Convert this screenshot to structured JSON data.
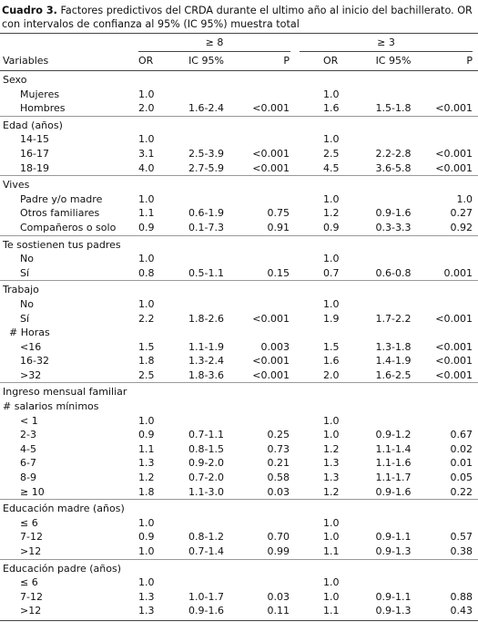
{
  "caption": {
    "label": "Cuadro 3.",
    "text": "Factores predictivos del CRDA durante el ultimo año al inicio del bachillerato. OR con intervalos de confianza al 95% (IC 95%) muestra total"
  },
  "table": {
    "group_headers": [
      "≥ 8",
      "≥ 3"
    ],
    "columns": [
      "Variables",
      "OR",
      "IC 95%",
      "P",
      "OR",
      "IC 95%",
      "P"
    ],
    "groups": [
      {
        "title": "Sexo",
        "rows": [
          {
            "label": "Mujeres",
            "or8": "1.0",
            "or3": "1.0"
          },
          {
            "label": "Hombres",
            "or8": "2.0",
            "ic8": "1.6-2.4",
            "p8": "<0.001",
            "or3": "1.6",
            "ic3": "1.5-1.8",
            "p3": "<0.001"
          }
        ]
      },
      {
        "title": "Edad (años)",
        "rows": [
          {
            "label": "14-15",
            "or8": "1.0",
            "or3": "1.0"
          },
          {
            "label": "16-17",
            "or8": "3.1",
            "ic8": "2.5-3.9",
            "p8": "<0.001",
            "or3": "2.5",
            "ic3": "2.2-2.8",
            "p3": "<0.001"
          },
          {
            "label": "18-19",
            "or8": "4.0",
            "ic8": "2.7-5.9",
            "p8": "<0.001",
            "or3": "4.5",
            "ic3": "3.6-5.8",
            "p3": "<0.001"
          }
        ]
      },
      {
        "title": "Vives",
        "rows": [
          {
            "label": "Padre y/o madre",
            "or8": "1.0",
            "or3": "1.0",
            "p3": "1.0"
          },
          {
            "label": "Otros familiares",
            "or8": "1.1",
            "ic8": "0.6-1.9",
            "p8": "0.75",
            "or3": "1.2",
            "ic3": "0.9-1.6",
            "p3": "0.27"
          },
          {
            "label": "Compañeros o solo",
            "or8": "0.9",
            "ic8": "0.1-7.3",
            "p8": "0.91",
            "or3": "0.9",
            "ic3": "0.3-3.3",
            "p3": "0.92"
          }
        ]
      },
      {
        "title": "Te sostienen tus padres",
        "rows": [
          {
            "label": "No",
            "or8": "1.0",
            "or3": "1.0"
          },
          {
            "label": "Sí",
            "or8": "0.8",
            "ic8": "0.5-1.1",
            "p8": "0.15",
            "or3": "0.7",
            "ic3": "0.6-0.8",
            "p3": "0.001"
          }
        ]
      },
      {
        "title": "Trabajo",
        "rows": [
          {
            "label": "No",
            "or8": "1.0",
            "or3": "1.0"
          },
          {
            "label": "Sí",
            "or8": "2.2",
            "ic8": "1.8-2.6",
            "p8": "<0.001",
            "or3": "1.9",
            "ic3": "1.7-2.2",
            "p3": "<0.001"
          },
          {
            "heading": "# Horas"
          },
          {
            "label": "<16",
            "or8": "1.5",
            "ic8": "1.1-1.9",
            "p8": "0.003",
            "or3": "1.5",
            "ic3": "1.3-1.8",
            "p3": "<0.001"
          },
          {
            "label": "16-32",
            "or8": "1.8",
            "ic8": "1.3-2.4",
            "p8": "<0.001",
            "or3": "1.6",
            "ic3": "1.4-1.9",
            "p3": "<0.001"
          },
          {
            "label": ">32",
            "or8": "2.5",
            "ic8": "1.8-3.6",
            "p8": "<0.001",
            "or3": "2.0",
            "ic3": "1.6-2.5",
            "p3": "<0.001"
          }
        ]
      },
      {
        "title": "Ingreso mensual familiar",
        "subtitle": "# salarios mínimos",
        "rows": [
          {
            "label": "< 1",
            "or8": "1.0",
            "or3": "1.0"
          },
          {
            "label": "2-3",
            "or8": "0.9",
            "ic8": "0.7-1.1",
            "p8": "0.25",
            "or3": "1.0",
            "ic3": "0.9-1.2",
            "p3": "0.67"
          },
          {
            "label": "4-5",
            "or8": "1.1",
            "ic8": "0.8-1.5",
            "p8": "0.73",
            "or3": "1.2",
            "ic3": "1.1-1.4",
            "p3": "0.02"
          },
          {
            "label": "6-7",
            "or8": "1.3",
            "ic8": "0.9-2.0",
            "p8": "0.21",
            "or3": "1.3",
            "ic3": "1.1-1.6",
            "p3": "0.01"
          },
          {
            "label": "8-9",
            "or8": "1.2",
            "ic8": "0.7-2.0",
            "p8": "0.58",
            "or3": "1.3",
            "ic3": "1.1-1.7",
            "p3": "0.05"
          },
          {
            "label": "≥ 10",
            "or8": "1.8",
            "ic8": "1.1-3.0",
            "p8": "0.03",
            "or3": "1.2",
            "ic3": "0.9-1.6",
            "p3": "0.22"
          }
        ]
      },
      {
        "title": "Educación madre (años)",
        "rows": [
          {
            "label": "≤ 6",
            "or8": "1.0",
            "or3": "1.0"
          },
          {
            "label": "7-12",
            "or8": "0.9",
            "ic8": "0.8-1.2",
            "p8": "0.70",
            "or3": "1.0",
            "ic3": "0.9-1.1",
            "p3": "0.57"
          },
          {
            "label": ">12",
            "or8": "1.0",
            "ic8": "0.7-1.4",
            "p8": "0.99",
            "or3": "1.1",
            "ic3": "0.9-1.3",
            "p3": "0.38"
          }
        ]
      },
      {
        "title": "Educación padre (años)",
        "rows": [
          {
            "label": "≤ 6",
            "or8": "1.0",
            "or3": "1.0"
          },
          {
            "label": "7-12",
            "or8": "1.3",
            "ic8": "1.0-1.7",
            "p8": "0.03",
            "or3": "1.0",
            "ic3": "0.9-1.1",
            "p3": "0.88"
          },
          {
            "label": ">12",
            "or8": "1.3",
            "ic8": "0.9-1.6",
            "p8": "0.11",
            "or3": "1.1",
            "ic3": "0.9-1.3",
            "p3": "0.43"
          }
        ]
      }
    ]
  }
}
